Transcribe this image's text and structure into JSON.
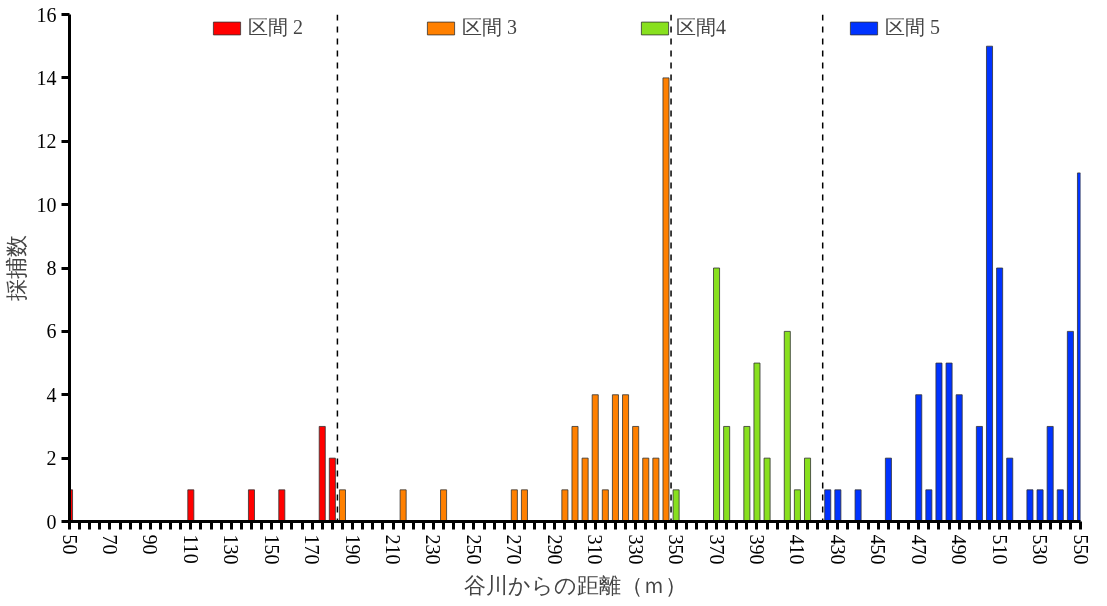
{
  "chart_data": {
    "type": "bar",
    "xlabel": "谷川からの距離（ｍ）",
    "ylabel": "採捕数",
    "series": [
      {
        "name": "区間 2",
        "color": "#ff0000",
        "x": [
          50,
          110,
          140,
          155,
          175,
          180
        ],
        "values": [
          1,
          1,
          1,
          1,
          3,
          2
        ]
      },
      {
        "name": "区間 3",
        "color": "#ff8000",
        "x": [
          185,
          215,
          235,
          270,
          275,
          295,
          300,
          305,
          310,
          315,
          320,
          325,
          330,
          335,
          340,
          345
        ],
        "values": [
          1,
          1,
          1,
          1,
          1,
          1,
          3,
          2,
          4,
          1,
          4,
          4,
          3,
          2,
          2,
          14
        ]
      },
      {
        "name": "区間4",
        "color": "#88e01e",
        "x": [
          350,
          370,
          375,
          385,
          390,
          395,
          405,
          410,
          415
        ],
        "values": [
          1,
          8,
          3,
          3,
          5,
          2,
          6,
          1,
          2
        ]
      },
      {
        "name": "区間 5",
        "color": "#0033ff",
        "x": [
          425,
          430,
          440,
          455,
          470,
          475,
          480,
          485,
          490,
          500,
          505,
          510,
          515,
          525,
          530,
          535,
          540,
          545,
          550
        ],
        "values": [
          1,
          1,
          1,
          2,
          4,
          1,
          5,
          5,
          4,
          3,
          15,
          8,
          2,
          1,
          1,
          3,
          1,
          6,
          11
        ]
      }
    ],
    "xlim": [
      50,
      550
    ],
    "ylim": [
      0,
      16
    ],
    "xticks": [
      50,
      {
        "value": 55,
        "label": null
      },
      {
        "value": 60,
        "label": null
      },
      {
        "value": 65,
        "label": null
      },
      70,
      {
        "value": 75,
        "label": null
      },
      {
        "value": 80,
        "label": null
      },
      {
        "value": 85,
        "label": null
      },
      90,
      {
        "value": 95,
        "label": null
      },
      {
        "value": 100,
        "label": null
      },
      {
        "value": 105,
        "label": null
      },
      110,
      {
        "value": 115,
        "label": null
      },
      {
        "value": 120,
        "label": null
      },
      {
        "value": 125,
        "label": null
      },
      130,
      {
        "value": 135,
        "label": null
      },
      {
        "value": 140,
        "label": null
      },
      {
        "value": 145,
        "label": null
      },
      150,
      {
        "value": 155,
        "label": null
      },
      {
        "value": 160,
        "label": null
      },
      {
        "value": 165,
        "label": null
      },
      170,
      {
        "value": 175,
        "label": null
      },
      {
        "value": 180,
        "label": null
      },
      {
        "value": 185,
        "label": null
      },
      190,
      {
        "value": 195,
        "label": null
      },
      {
        "value": 200,
        "label": null
      },
      {
        "value": 205,
        "label": null
      },
      210,
      {
        "value": 215,
        "label": null
      },
      {
        "value": 220,
        "label": null
      },
      {
        "value": 225,
        "label": null
      },
      230,
      {
        "value": 235,
        "label": null
      },
      {
        "value": 240,
        "label": null
      },
      {
        "value": 245,
        "label": null
      },
      250,
      {
        "value": 255,
        "label": null
      },
      {
        "value": 260,
        "label": null
      },
      {
        "value": 265,
        "label": null
      },
      270,
      {
        "value": 275,
        "label": null
      },
      {
        "value": 280,
        "label": null
      },
      {
        "value": 285,
        "label": null
      },
      290,
      {
        "value": 295,
        "label": null
      },
      {
        "value": 300,
        "label": null
      },
      {
        "value": 305,
        "label": null
      },
      310,
      {
        "value": 315,
        "label": null
      },
      {
        "value": 320,
        "label": null
      },
      {
        "value": 325,
        "label": null
      },
      330,
      {
        "value": 335,
        "label": null
      },
      {
        "value": 340,
        "label": null
      },
      {
        "value": 345,
        "label": null
      },
      350,
      {
        "value": 355,
        "label": null
      },
      {
        "value": 360,
        "label": null
      },
      {
        "value": 365,
        "label": null
      },
      370,
      {
        "value": 375,
        "label": null
      },
      {
        "value": 380,
        "label": null
      },
      {
        "value": 385,
        "label": null
      },
      390,
      {
        "value": 395,
        "label": null
      },
      {
        "value": 400,
        "label": null
      },
      {
        "value": 405,
        "label": null
      },
      410,
      {
        "value": 415,
        "label": null
      },
      {
        "value": 420,
        "label": null
      },
      {
        "value": 425,
        "label": null
      },
      430,
      {
        "value": 435,
        "label": null
      },
      {
        "value": 440,
        "label": null
      },
      {
        "value": 445,
        "label": null
      },
      450,
      {
        "value": 455,
        "label": null
      },
      {
        "value": 460,
        "label": null
      },
      {
        "value": 465,
        "label": null
      },
      470,
      {
        "value": 475,
        "label": null
      },
      {
        "value": 480,
        "label": null
      },
      {
        "value": 485,
        "label": null
      },
      490,
      {
        "value": 495,
        "label": null
      },
      {
        "value": 500,
        "label": null
      },
      {
        "value": 505,
        "label": null
      },
      510,
      {
        "value": 515,
        "label": null
      },
      {
        "value": 520,
        "label": null
      },
      {
        "value": 525,
        "label": null
      },
      530,
      {
        "value": 535,
        "label": null
      },
      {
        "value": 540,
        "label": null
      },
      {
        "value": 545,
        "label": null
      },
      550
    ],
    "yticks": [
      0,
      2,
      4,
      6,
      8,
      10,
      12,
      14,
      16
    ],
    "ref_lines": [
      {
        "axis": "x",
        "value": 182.5,
        "line_style": "dashed",
        "color": "#000000"
      },
      {
        "axis": "x",
        "value": 347.5,
        "line_style": "dashed",
        "color": "#000000"
      },
      {
        "axis": "x",
        "value": 422.5,
        "line_style": "dashed",
        "color": "#000000"
      }
    ],
    "grid": false,
    "legend": "top"
  }
}
